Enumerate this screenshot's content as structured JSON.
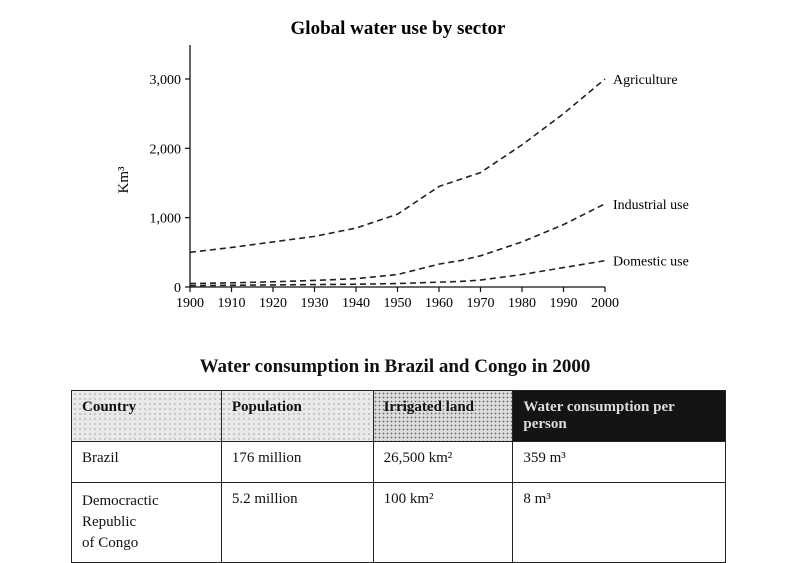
{
  "chart_data": {
    "type": "line",
    "title": "Global water use by sector",
    "ylabel": "Km³",
    "xlabel": "",
    "x": [
      1900,
      1910,
      1920,
      1930,
      1940,
      1950,
      1960,
      1965,
      1970,
      1980,
      1990,
      2000
    ],
    "xticks": [
      "1900",
      "1910",
      "1920",
      "1930",
      "1940",
      "1950",
      "1960",
      "1970",
      "1980",
      "1990",
      "2000"
    ],
    "yticks": [
      "0",
      "1,000",
      "2,000",
      "3,000"
    ],
    "xlim": [
      1900,
      2000
    ],
    "ylim": [
      0,
      3000
    ],
    "series": [
      {
        "name": "Agriculture",
        "values": [
          500,
          570,
          650,
          730,
          850,
          1050,
          1450,
          1550,
          1650,
          2050,
          2500,
          3000
        ]
      },
      {
        "name": "Industrial use",
        "values": [
          50,
          60,
          75,
          95,
          120,
          180,
          330,
          380,
          450,
          650,
          900,
          1200
        ]
      },
      {
        "name": "Domestic use",
        "values": [
          20,
          25,
          30,
          35,
          40,
          50,
          70,
          80,
          100,
          180,
          280,
          380
        ]
      }
    ],
    "grid": false,
    "line_style": "dashed"
  },
  "table": {
    "title": "Water consumption in Brazil and Congo in 2000",
    "headers": [
      "Country",
      "Population",
      "Irrigated land",
      "Water consumption per person"
    ],
    "rows": [
      {
        "country": "Brazil",
        "population": "176 million",
        "irrigated": "26,500 km²",
        "consumption": "359 m³"
      },
      {
        "country_lines": [
          "Democractic",
          "Republic",
          "of Congo"
        ],
        "population": "5.2 million",
        "irrigated": "100 km²",
        "consumption": "8 m³"
      }
    ]
  }
}
